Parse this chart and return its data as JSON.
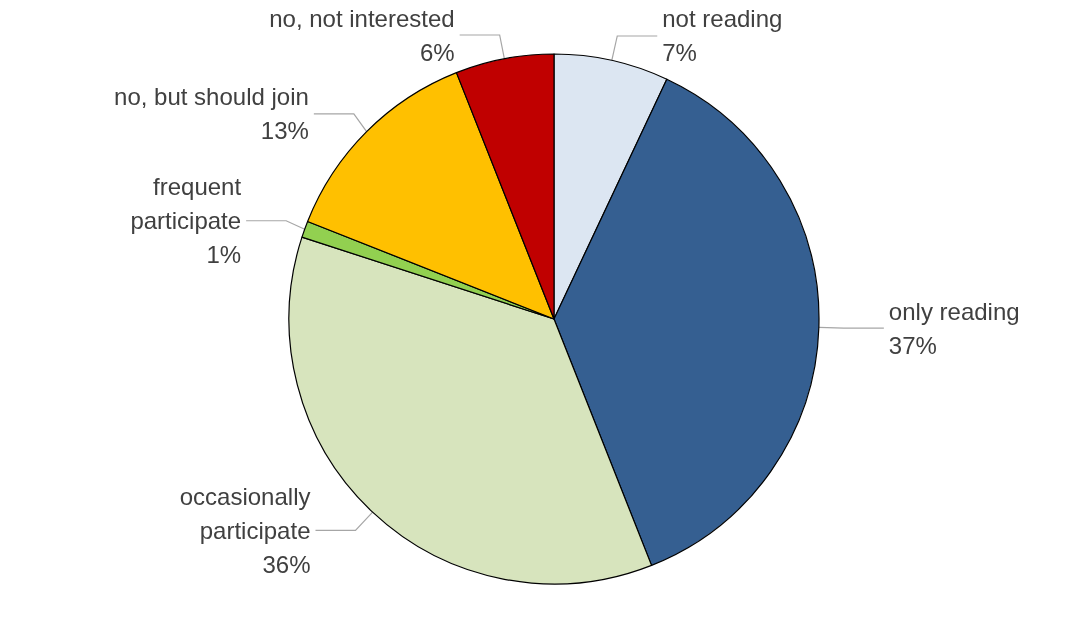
{
  "chart_data": {
    "type": "pie",
    "categories": [
      "not reading",
      "only reading",
      "occasionally participate",
      "frequent participate",
      "no, but should join",
      "no, not interested"
    ],
    "values": [
      7,
      37,
      36,
      1,
      13,
      6
    ],
    "value_labels": [
      "7%",
      "37%",
      "36%",
      "1%",
      "13%",
      "6%"
    ],
    "colors": [
      "#dce6f2",
      "#355f91",
      "#d7e4bd",
      "#92d050",
      "#ffc000",
      "#c00000"
    ]
  }
}
